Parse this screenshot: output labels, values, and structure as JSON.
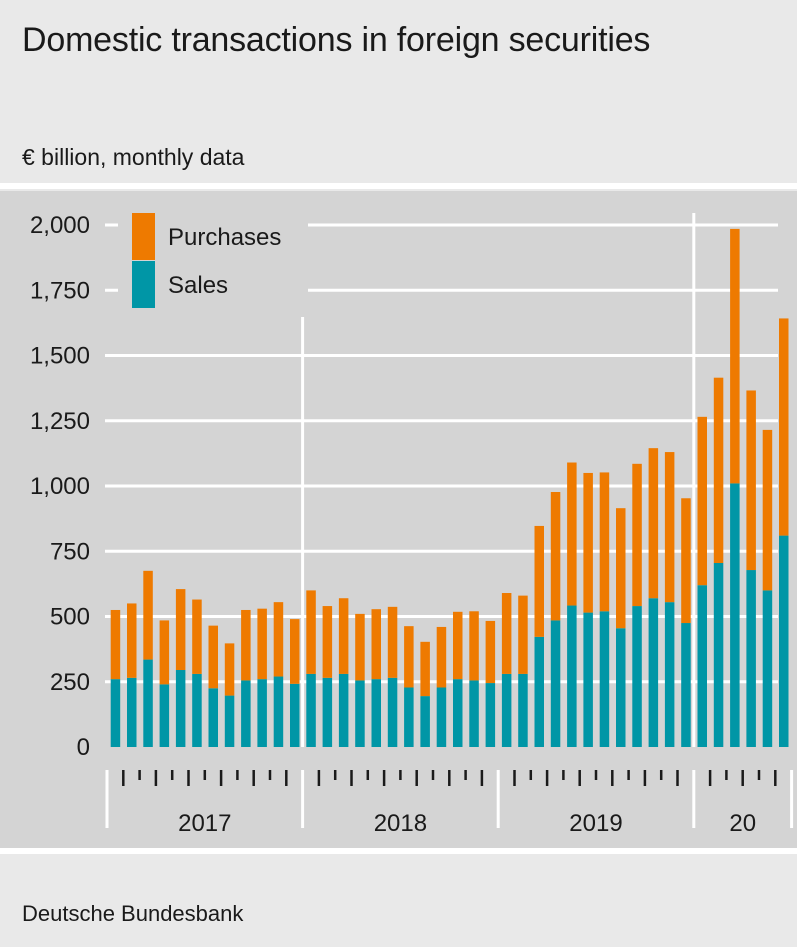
{
  "header": {
    "title": "Domestic transactions in foreign securities",
    "subtitle": "€ billion, monthly data"
  },
  "footer": {
    "source": "Deutsche Bundesbank"
  },
  "colors": {
    "purchases": "#ee7a00",
    "sales": "#0096a6",
    "background": "#d4d4d4",
    "grid": "#ffffff"
  },
  "chart_data": {
    "type": "bar",
    "stacked": true,
    "ylim": [
      0,
      2000
    ],
    "yticks": [
      {
        "value": 0,
        "label": "0"
      },
      {
        "value": 250,
        "label": "250"
      },
      {
        "value": 500,
        "label": "500"
      },
      {
        "value": 750,
        "label": "750"
      },
      {
        "value": 1000,
        "label": "1,000"
      },
      {
        "value": 1250,
        "label": "1,250"
      },
      {
        "value": 1500,
        "label": "1,500"
      },
      {
        "value": 1750,
        "label": "1,750"
      },
      {
        "value": 2000,
        "label": "2,000"
      }
    ],
    "years": [
      {
        "label": "2017",
        "months": 12
      },
      {
        "label": "2018",
        "months": 12
      },
      {
        "label": "2019",
        "months": 12
      },
      {
        "label": "20",
        "months": 6
      }
    ],
    "grid": true,
    "legend_placement": "top-left",
    "series": [
      {
        "name": "Sales",
        "values": [
          260,
          265,
          335,
          240,
          295,
          280,
          225,
          197,
          255,
          260,
          270,
          242,
          280,
          265,
          280,
          255,
          260,
          265,
          228,
          195,
          228,
          260,
          255,
          245,
          280,
          280,
          422,
          485,
          542,
          515,
          520,
          455,
          540,
          570,
          555,
          475,
          620,
          705,
          1010,
          678,
          600,
          810
        ]
      },
      {
        "name": "Purchases",
        "values": [
          265,
          285,
          340,
          245,
          310,
          285,
          240,
          200,
          270,
          270,
          285,
          248,
          320,
          275,
          290,
          255,
          268,
          272,
          235,
          208,
          232,
          258,
          265,
          238,
          310,
          300,
          425,
          492,
          548,
          535,
          532,
          460,
          545,
          575,
          575,
          478,
          645,
          710,
          975,
          688,
          615,
          832
        ]
      }
    ],
    "legend": [
      {
        "name": "Purchases",
        "color": "#ee7a00"
      },
      {
        "name": "Sales",
        "color": "#0096a6"
      }
    ]
  }
}
